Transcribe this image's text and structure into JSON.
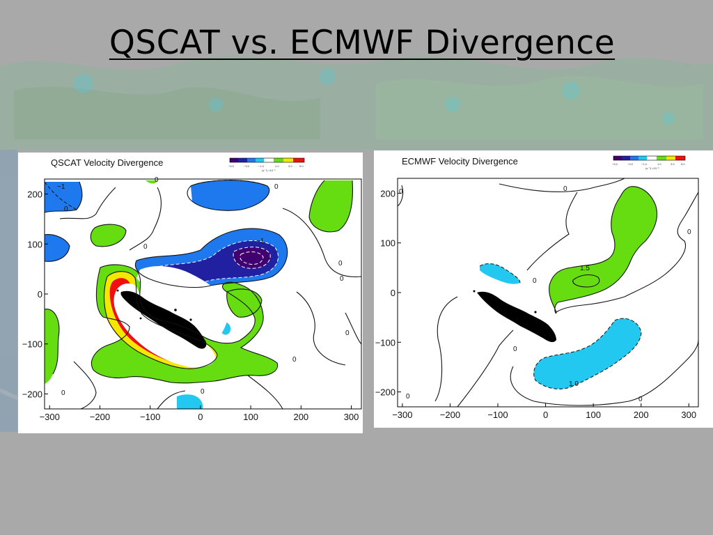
{
  "slide": {
    "title": "QSCAT vs. ECMWF Divergence"
  },
  "colors": {
    "background": "#a9a9a9",
    "green": "#66dd11",
    "cyan": "#22c8f0",
    "blue": "#1e78ee",
    "navy": "#2020a0",
    "purple": "#400070",
    "yellow": "#f5e800",
    "red": "#f01010",
    "land": "#000000"
  },
  "chart_data": [
    {
      "type": "heatmap",
      "title": "QSCAT Velocity Divergence",
      "x_ticks": [
        "−300",
        "−200",
        "−100",
        "0",
        "100",
        "200",
        "300"
      ],
      "y_ticks": [
        "200",
        "100",
        "0",
        "−100",
        "−200"
      ],
      "xlim": [
        -310,
        320
      ],
      "ylim": [
        -230,
        230
      ],
      "colorbar": {
        "ticks": [
          "−5.0",
          "−3.0",
          "−1.0",
          "1.0",
          "3.0",
          "5.0"
        ],
        "units": "(s⁻¹) ×10⁻⁵",
        "colors": [
          "#400070",
          "#2020a0",
          "#1e78ee",
          "#22c8f0",
          "#ffffff",
          "#66dd11",
          "#f5e800",
          "#f01010"
        ]
      },
      "contour_labels": [
        "0",
        "0",
        "0",
        "0",
        "0",
        "0",
        "0",
        "0",
        "0",
        "0",
        "−1",
        "−1"
      ],
      "regions": [
        {
          "sign": "negative",
          "level": "strong",
          "center": [
            100,
            75
          ]
        },
        {
          "sign": "negative",
          "level": "moderate",
          "center": [
            -20,
            0
          ]
        },
        {
          "sign": "positive",
          "level": "strong",
          "center": [
            -30,
            -80
          ]
        },
        {
          "sign": "positive",
          "level": "moderate",
          "center": [
            -120,
            10
          ]
        }
      ]
    },
    {
      "type": "heatmap",
      "title": "ECMWF Velocity Divergence",
      "x_ticks": [
        "−300",
        "−200",
        "−100",
        "0",
        "100",
        "200",
        "300"
      ],
      "y_ticks": [
        "200",
        "100",
        "0",
        "−100",
        "−200"
      ],
      "xlim": [
        -310,
        320
      ],
      "ylim": [
        -230,
        230
      ],
      "colorbar": {
        "ticks": [
          "−5.0",
          "−3.0",
          "−1.0",
          "1.0",
          "3.0",
          "5.0"
        ],
        "units": "(s⁻¹) ×10⁻⁵",
        "colors": [
          "#400070",
          "#2020a0",
          "#1e78ee",
          "#22c8f0",
          "#ffffff",
          "#66dd11",
          "#f5e800",
          "#f01010"
        ]
      },
      "contour_labels": [
        "0",
        "0",
        "0",
        "0",
        "0",
        "0",
        "0",
        "1.5",
        "1.0"
      ],
      "regions": [
        {
          "sign": "positive",
          "level": "1.5",
          "center": [
            70,
            30
          ]
        },
        {
          "sign": "negative",
          "level": "weak",
          "center": [
            110,
            -120
          ]
        },
        {
          "sign": "negative",
          "level": "weak",
          "center": [
            -90,
            40
          ]
        }
      ]
    }
  ]
}
